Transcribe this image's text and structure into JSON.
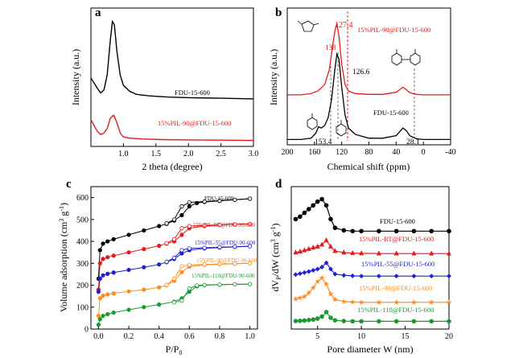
{
  "chart_data": [
    {
      "panel": "a",
      "type": "line",
      "xlabel": "2 theta (degree)",
      "ylabel": "Intensity (a.u.)",
      "xlim": [
        0.5,
        3.0
      ],
      "xticks": [
        "1.0",
        "1.5",
        "2.0",
        "2.5",
        "3.0"
      ],
      "series": [
        {
          "name": "FDU-15-600",
          "color": "#000000",
          "x": [
            0.5,
            0.6,
            0.65,
            0.7,
            0.75,
            0.8,
            0.83,
            0.86,
            0.9,
            0.95,
            1.0,
            1.1,
            1.2,
            1.4,
            1.7,
            2.0,
            2.5,
            3.0
          ],
          "y": [
            2.3,
            1.95,
            1.8,
            1.9,
            2.4,
            3.6,
            4.2,
            4.1,
            3.2,
            2.4,
            2.05,
            1.85,
            1.75,
            1.7,
            1.66,
            1.64,
            1.62,
            1.6
          ]
        },
        {
          "name": "15%PIL-90@FDU-15-600",
          "color": "#e41a1c",
          "x": [
            0.5,
            0.6,
            0.65,
            0.7,
            0.75,
            0.8,
            0.85,
            0.9,
            0.95,
            1.0,
            1.1,
            1.3,
            1.6,
            2.0,
            2.5,
            3.0
          ],
          "y": [
            0.9,
            0.5,
            0.4,
            0.45,
            0.6,
            0.95,
            1.05,
            0.8,
            0.45,
            0.32,
            0.28,
            0.25,
            0.23,
            0.22,
            0.21,
            0.2
          ]
        }
      ]
    },
    {
      "panel": "b",
      "type": "line",
      "xlabel": "Chemical shift (ppm)",
      "ylabel": "Intensity (a.u.)",
      "xlim": [
        200,
        -40
      ],
      "xticks": [
        "200",
        "160",
        "120",
        "80",
        "40",
        "0",
        "-40"
      ],
      "annotations": [
        "127.4",
        "138",
        "126.6",
        "153.4",
        "28.1"
      ],
      "series": [
        {
          "name": "15%PIL-90@FDU-15-600",
          "color": "#e41a1c",
          "x": [
            200,
            180,
            165,
            155,
            145,
            138,
            134,
            130,
            127,
            124,
            120,
            115,
            110,
            100,
            80,
            60,
            40,
            35,
            30,
            25,
            20,
            10,
            0,
            -20,
            -40
          ],
          "y": [
            1.8,
            1.8,
            1.85,
            1.95,
            2.2,
            2.8,
            3.6,
            4.3,
            4.6,
            4.1,
            3.0,
            2.2,
            1.95,
            1.85,
            1.82,
            1.82,
            1.9,
            2.0,
            2.1,
            2.0,
            1.88,
            1.82,
            1.8,
            1.8,
            1.8
          ]
        },
        {
          "name": "FDU-15-600",
          "color": "#000000",
          "x": [
            200,
            180,
            165,
            158,
            154,
            150,
            145,
            140,
            135,
            130,
            127,
            124,
            120,
            115,
            110,
            100,
            80,
            60,
            40,
            35,
            30,
            25,
            20,
            10,
            0,
            -20,
            -40
          ],
          "y": [
            0.05,
            0.05,
            0.1,
            0.3,
            0.55,
            0.5,
            0.6,
            0.9,
            1.6,
            2.8,
            3.4,
            3.2,
            2.1,
            1.0,
            0.5,
            0.25,
            0.1,
            0.1,
            0.2,
            0.35,
            0.5,
            0.4,
            0.2,
            0.08,
            0.05,
            0.05,
            0.05
          ]
        }
      ]
    },
    {
      "panel": "c",
      "type": "line",
      "xlabel": "P/P0",
      "ylabel": "Volume adsorption (cm3 g-1)",
      "xlim": [
        0,
        1.0
      ],
      "ylim": [
        0,
        650
      ],
      "xticks": [
        "0.0",
        "0.2",
        "0.4",
        "0.6",
        "0.8",
        "1.0"
      ],
      "yticks": [
        "0",
        "100",
        "200",
        "300",
        "400",
        "500",
        "600"
      ],
      "series": [
        {
          "name": "FDU-15-600",
          "color": "#000000",
          "ads_x": [
            0.0,
            0.01,
            0.03,
            0.06,
            0.1,
            0.2,
            0.3,
            0.4,
            0.45,
            0.5,
            0.55,
            0.6,
            0.65,
            0.7,
            0.8,
            0.9,
            1.0
          ],
          "ads_y": [
            230,
            360,
            390,
            400,
            410,
            430,
            450,
            470,
            480,
            495,
            520,
            560,
            575,
            580,
            585,
            590,
            595
          ],
          "des_x": [
            1.0,
            0.9,
            0.8,
            0.7,
            0.6,
            0.55,
            0.5,
            0.45
          ],
          "des_y": [
            595,
            590,
            586,
            582,
            578,
            560,
            500,
            482
          ]
        },
        {
          "name": "15%PIL-RT@FDU-15-600",
          "color": "#e41a1c",
          "ads_x": [
            0.0,
            0.01,
            0.03,
            0.06,
            0.1,
            0.2,
            0.3,
            0.4,
            0.45,
            0.5,
            0.55,
            0.6,
            0.7,
            0.8,
            0.9,
            1.0
          ],
          "ads_y": [
            180,
            300,
            320,
            328,
            335,
            350,
            365,
            380,
            390,
            400,
            430,
            460,
            470,
            475,
            478,
            480
          ],
          "des_x": [
            1.0,
            0.9,
            0.8,
            0.7,
            0.6,
            0.55,
            0.5,
            0.45
          ],
          "des_y": [
            480,
            478,
            476,
            473,
            470,
            460,
            410,
            392
          ]
        },
        {
          "name": "15%PIL-55@FDU-15-600",
          "color": "#1f1fd6",
          "ads_x": [
            0.0,
            0.01,
            0.03,
            0.06,
            0.1,
            0.2,
            0.3,
            0.4,
            0.45,
            0.5,
            0.55,
            0.6,
            0.7,
            0.8,
            0.9,
            1.0
          ],
          "ads_y": [
            170,
            230,
            245,
            252,
            258,
            270,
            282,
            295,
            305,
            320,
            345,
            360,
            368,
            372,
            375,
            378
          ],
          "des_x": [
            1.0,
            0.9,
            0.8,
            0.7,
            0.6,
            0.55,
            0.5,
            0.45
          ],
          "des_y": [
            378,
            376,
            374,
            371,
            368,
            360,
            325,
            307
          ]
        },
        {
          "name": "15%PIL-90@FDU-15-600",
          "color": "#ff8c1a",
          "ads_x": [
            0.0,
            0.01,
            0.03,
            0.06,
            0.1,
            0.2,
            0.3,
            0.4,
            0.45,
            0.5,
            0.55,
            0.6,
            0.7,
            0.8,
            0.9,
            1.0
          ],
          "ads_y": [
            60,
            140,
            152,
            158,
            163,
            172,
            180,
            190,
            200,
            220,
            260,
            285,
            293,
            296,
            298,
            300
          ],
          "des_x": [
            1.0,
            0.9,
            0.8,
            0.7,
            0.6,
            0.55,
            0.5,
            0.45
          ],
          "des_y": [
            300,
            299,
            297,
            295,
            293,
            287,
            230,
            202
          ]
        },
        {
          "name": "15%PIL-110@FDU-15-600",
          "color": "#1a9a2e",
          "ads_x": [
            0.0,
            0.01,
            0.03,
            0.06,
            0.1,
            0.2,
            0.3,
            0.4,
            0.5,
            0.55,
            0.6,
            0.65,
            0.7,
            0.8,
            0.9,
            1.0
          ],
          "ads_y": [
            20,
            45,
            60,
            68,
            75,
            88,
            100,
            112,
            125,
            140,
            170,
            195,
            200,
            202,
            204,
            205
          ],
          "des_x": [
            1.0,
            0.9,
            0.8,
            0.7,
            0.65,
            0.6,
            0.55,
            0.5
          ],
          "des_y": [
            205,
            204,
            203,
            201,
            199,
            185,
            130,
            122
          ]
        }
      ],
      "labels": [
        "FDU-15-600",
        "15%PIL-RT@FDU-90-600",
        "15%PIL-55@FDU-90-600",
        "15%PIL-90@FDU-90-600",
        "15%PIL-110@FDU-90-600"
      ]
    },
    {
      "panel": "d",
      "type": "line",
      "xlabel": "Pore diameter W (nm)",
      "ylabel": "dVp/dW (cm3 g-1)",
      "xlim": [
        2,
        20
      ],
      "xticks": [
        "5",
        "10",
        "15",
        "20"
      ],
      "series": [
        {
          "name": "FDU-15-600",
          "color": "#000000",
          "x": [
            2.5,
            3,
            3.5,
            4,
            4.5,
            5,
            5.5,
            6,
            6.5,
            7,
            8,
            9,
            10,
            12,
            14,
            16,
            18,
            20
          ],
          "y": [
            4.4,
            4.5,
            4.65,
            4.8,
            4.95,
            5.1,
            5.2,
            4.95,
            4.4,
            4.05,
            3.95,
            3.92,
            3.92,
            3.92,
            3.92,
            3.92,
            3.92,
            3.92
          ]
        },
        {
          "name": "15%PIL-RT@FDU-15-600",
          "color": "#e41a1c",
          "x": [
            2.5,
            3,
            3.5,
            4,
            4.5,
            5,
            5.5,
            6,
            6.5,
            7,
            8,
            9,
            10,
            12,
            14,
            16,
            18,
            20
          ],
          "y": [
            3.06,
            3.1,
            3.15,
            3.2,
            3.26,
            3.3,
            3.38,
            3.55,
            3.3,
            3.12,
            3.06,
            3.04,
            3.03,
            3.02,
            3.02,
            3.02,
            3.02,
            3.02
          ]
        },
        {
          "name": "15%PIL-55@FDU-15-600",
          "color": "#1f1fd6",
          "x": [
            2.5,
            3,
            3.5,
            4,
            4.5,
            5,
            5.5,
            6,
            6.5,
            7,
            8,
            9,
            10,
            12,
            14,
            16,
            18,
            20
          ],
          "y": [
            2.18,
            2.22,
            2.26,
            2.3,
            2.35,
            2.4,
            2.48,
            2.65,
            2.4,
            2.2,
            2.15,
            2.13,
            2.12,
            2.12,
            2.12,
            2.12,
            2.12,
            2.12
          ]
        },
        {
          "name": "15%PIL-90@FDU-15-600",
          "color": "#ff8c1a",
          "x": [
            2.5,
            3,
            3.5,
            4,
            4.5,
            5,
            5.5,
            6,
            6.5,
            7,
            8,
            9,
            10,
            12,
            14,
            16,
            18,
            20
          ],
          "y": [
            1.2,
            1.25,
            1.3,
            1.45,
            1.65,
            1.9,
            2.05,
            1.8,
            1.4,
            1.18,
            1.1,
            1.08,
            1.07,
            1.07,
            1.07,
            1.07,
            1.07,
            1.07
          ]
        },
        {
          "name": "15%PIL-110@FDU-15-600",
          "color": "#1a9a2e",
          "x": [
            2.5,
            3,
            3.5,
            4,
            4.5,
            5,
            5.5,
            6,
            6.5,
            7,
            8,
            9,
            10,
            12,
            14,
            16,
            18,
            20
          ],
          "y": [
            0.32,
            0.33,
            0.34,
            0.36,
            0.38,
            0.42,
            0.5,
            0.68,
            0.45,
            0.35,
            0.32,
            0.31,
            0.31,
            0.31,
            0.31,
            0.31,
            0.31,
            0.31
          ]
        }
      ]
    }
  ],
  "panel_letters": {
    "a": "a",
    "b": "b",
    "c": "c",
    "d": "d"
  },
  "axis_titles": {
    "a_x": "2 theta (degree)",
    "a_y": "Intensity (a.u.)",
    "b_x": "Chemical shift (ppm)",
    "b_y": "Intensity (a.u.)",
    "c_x": "P/P",
    "c_x_sub": "0",
    "c_y": "Volume adsorption (cm",
    "c_y_sup1": "3",
    "c_y_mid": " g",
    "c_y_sup2": "-1",
    "c_y_end": ")",
    "d_x": "Pore diameter W (nm)",
    "d_y": "dV",
    "d_y_sub": "P",
    "d_y_mid": "/dW (cm",
    "d_y_sup1": "3",
    "d_y_mid2": " g",
    "d_y_sup2": "-1",
    "d_y_end": ")"
  },
  "labels": {
    "a_black": "FDU-15-600",
    "a_red": "15%PIL-90@FDU-15-600",
    "b_red": "15%PIL-90@FDU-15-600",
    "b_black": "FDU-15-600",
    "b_127": "127.4",
    "b_138": "138",
    "b_1266": "126.6",
    "b_1534": "153.4",
    "b_281": "28.1",
    "c_0": "FDU-15-600",
    "c_1": "15%PIL-RT@FDU-90-600",
    "c_2": "15%PIL-55@FDU-90-600",
    "c_3": "15%PIL-90@FDU-90-600",
    "c_4": "15%PIL-110@FDU-90-600",
    "d_0": "FDU-15-600",
    "d_1": "15%PIL-RT@FDU-15-600",
    "d_2": "15%PIL-55@FDU-15-600",
    "d_3": "15%PIL-90@FDU-15-600",
    "d_4": "15%PIL-110@FDU-15-600"
  },
  "ticks": {
    "a": [
      "1.0",
      "1.5",
      "2.0",
      "2.5",
      "3.0"
    ],
    "b": [
      "200",
      "160",
      "120",
      "80",
      "40",
      "0",
      "-40"
    ],
    "c_x": [
      "0.0",
      "0.2",
      "0.4",
      "0.6",
      "0.8",
      "1.0"
    ],
    "c_y": [
      "0",
      "100",
      "200",
      "300",
      "400",
      "500",
      "600"
    ],
    "d": [
      "5",
      "10",
      "15",
      "20"
    ]
  }
}
